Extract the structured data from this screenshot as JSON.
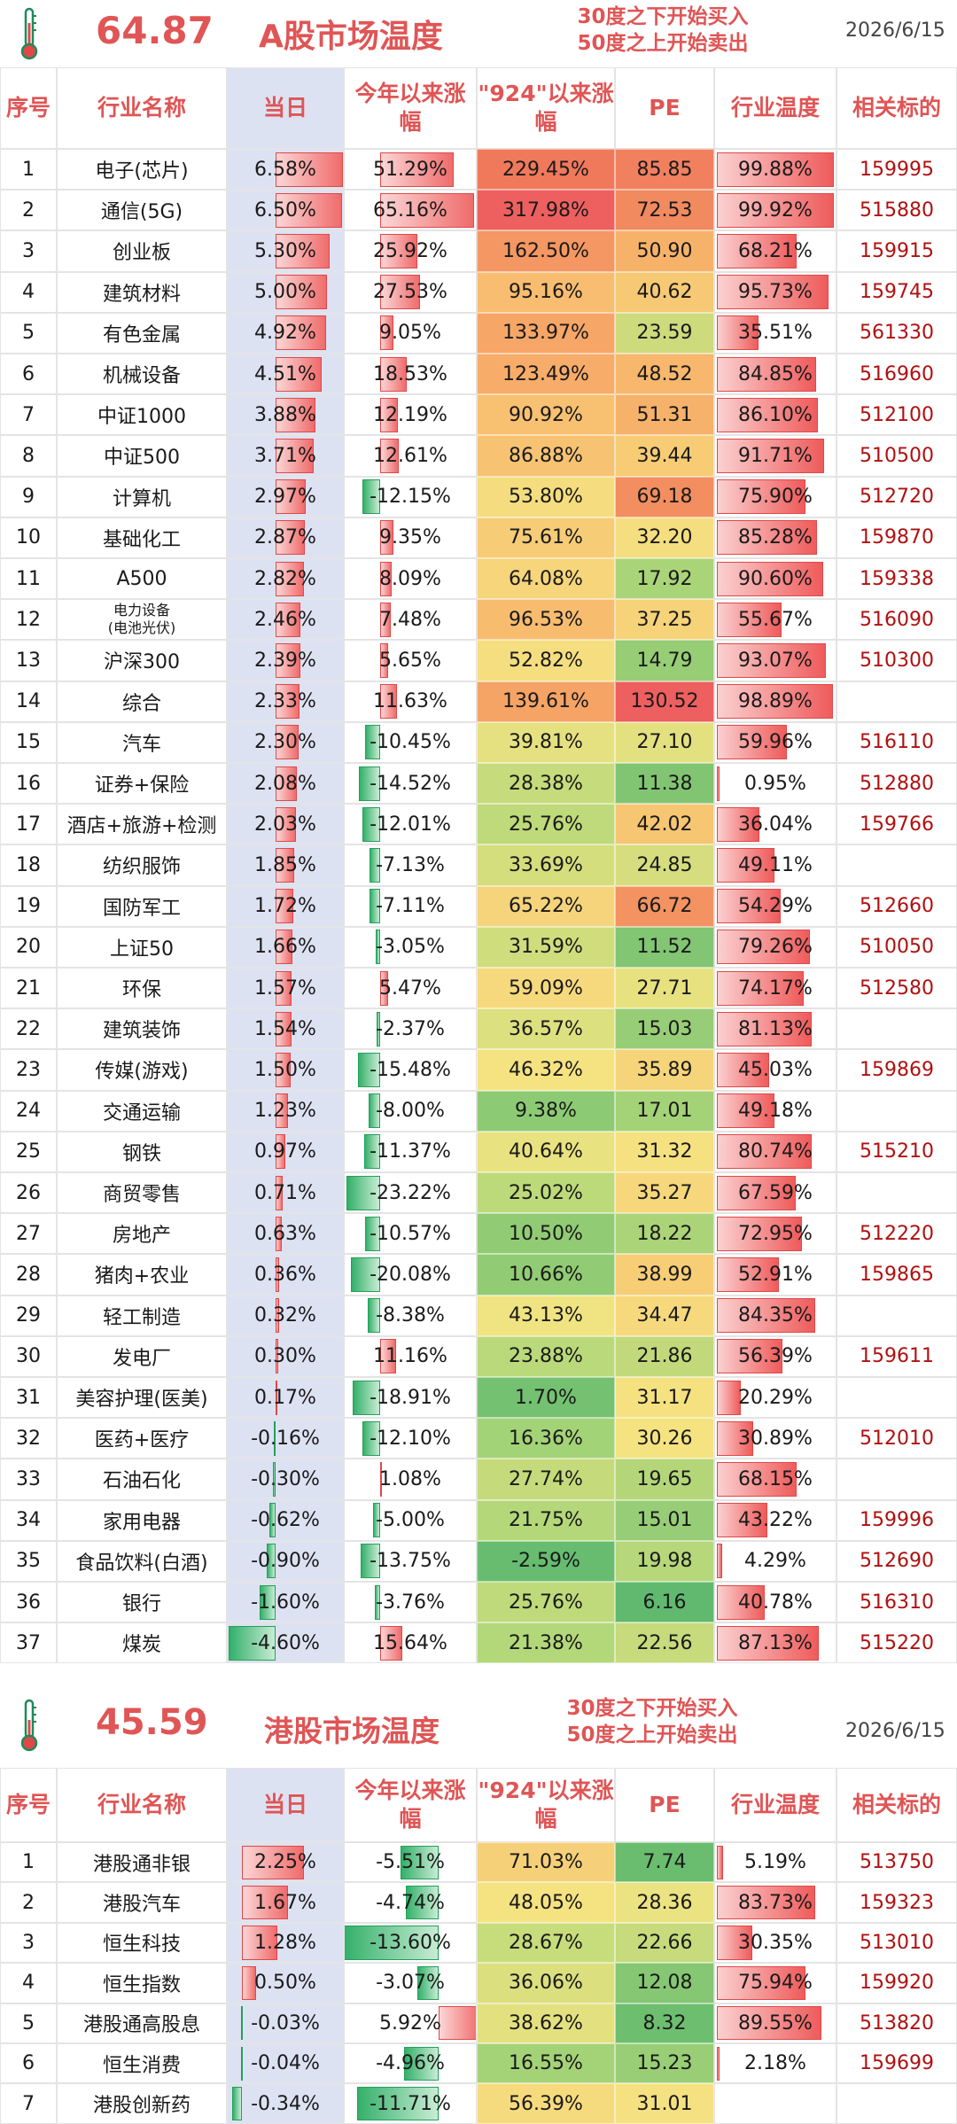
{
  "a_share": {
    "temperature": "64.87",
    "title": "A股市场温度",
    "note_line1": "30度之下开始买入",
    "note_line2": "50度之上开始卖出",
    "date": "2026/6/15",
    "headers": {
      "index": "序号",
      "name": "行业名称",
      "today": "当日",
      "ytd": "今年以来涨幅",
      "since924": "\"924\"以来涨幅",
      "pe": "PE",
      "temp": "行业温度",
      "code": "相关标的"
    },
    "rows": [
      {
        "no": "1",
        "name": "电子(芯片)",
        "today": "6.58%",
        "ytd": "51.29%",
        "since924": "229.45%",
        "pe": "85.85",
        "temp": "99.88%",
        "code": "159995"
      },
      {
        "no": "2",
        "name": "通信(5G)",
        "today": "6.50%",
        "ytd": "65.16%",
        "since924": "317.98%",
        "pe": "72.53",
        "temp": "99.92%",
        "code": "515880"
      },
      {
        "no": "3",
        "name": "创业板",
        "today": "5.30%",
        "ytd": "25.92%",
        "since924": "162.50%",
        "pe": "50.90",
        "temp": "68.21%",
        "code": "159915"
      },
      {
        "no": "4",
        "name": "建筑材料",
        "today": "5.00%",
        "ytd": "27.53%",
        "since924": "95.16%",
        "pe": "40.62",
        "temp": "95.73%",
        "code": "159745"
      },
      {
        "no": "5",
        "name": "有色金属",
        "today": "4.92%",
        "ytd": "9.05%",
        "since924": "133.97%",
        "pe": "23.59",
        "temp": "35.51%",
        "code": "561330"
      },
      {
        "no": "6",
        "name": "机械设备",
        "today": "4.51%",
        "ytd": "18.53%",
        "since924": "123.49%",
        "pe": "48.52",
        "temp": "84.85%",
        "code": "516960"
      },
      {
        "no": "7",
        "name": "中证1000",
        "today": "3.88%",
        "ytd": "12.19%",
        "since924": "90.92%",
        "pe": "51.31",
        "temp": "86.10%",
        "code": "512100"
      },
      {
        "no": "8",
        "name": "中证500",
        "today": "3.71%",
        "ytd": "12.61%",
        "since924": "86.88%",
        "pe": "39.44",
        "temp": "91.71%",
        "code": "510500"
      },
      {
        "no": "9",
        "name": "计算机",
        "today": "2.97%",
        "ytd": "-12.15%",
        "since924": "53.80%",
        "pe": "69.18",
        "temp": "75.90%",
        "code": "512720"
      },
      {
        "no": "10",
        "name": "基础化工",
        "today": "2.87%",
        "ytd": "9.35%",
        "since924": "75.61%",
        "pe": "32.20",
        "temp": "85.28%",
        "code": "159870"
      },
      {
        "no": "11",
        "name": "A500",
        "today": "2.82%",
        "ytd": "8.09%",
        "since924": "64.08%",
        "pe": "17.92",
        "temp": "90.60%",
        "code": "159338"
      },
      {
        "no": "12",
        "name": "电力设备",
        "name2": "(电池光伏)",
        "today": "2.46%",
        "ytd": "7.48%",
        "since924": "96.53%",
        "pe": "37.25",
        "temp": "55.67%",
        "code": "516090"
      },
      {
        "no": "13",
        "name": "沪深300",
        "today": "2.39%",
        "ytd": "5.65%",
        "since924": "52.82%",
        "pe": "14.79",
        "temp": "93.07%",
        "code": "510300"
      },
      {
        "no": "14",
        "name": "综合",
        "today": "2.33%",
        "ytd": "11.63%",
        "since924": "139.61%",
        "pe": "130.52",
        "temp": "98.89%",
        "code": ""
      },
      {
        "no": "15",
        "name": "汽车",
        "today": "2.30%",
        "ytd": "-10.45%",
        "since924": "39.81%",
        "pe": "27.10",
        "temp": "59.96%",
        "code": "516110"
      },
      {
        "no": "16",
        "name": "证券+保险",
        "today": "2.08%",
        "ytd": "-14.52%",
        "since924": "28.38%",
        "pe": "11.38",
        "temp": "0.95%",
        "code": "512880"
      },
      {
        "no": "17",
        "name": "酒店+旅游+检测",
        "today": "2.03%",
        "ytd": "-12.01%",
        "since924": "25.76%",
        "pe": "42.02",
        "temp": "36.04%",
        "code": "159766"
      },
      {
        "no": "18",
        "name": "纺织服饰",
        "today": "1.85%",
        "ytd": "-7.13%",
        "since924": "33.69%",
        "pe": "24.85",
        "temp": "49.11%",
        "code": ""
      },
      {
        "no": "19",
        "name": "国防军工",
        "today": "1.72%",
        "ytd": "-7.11%",
        "since924": "65.22%",
        "pe": "66.72",
        "temp": "54.29%",
        "code": "512660"
      },
      {
        "no": "20",
        "name": "上证50",
        "today": "1.66%",
        "ytd": "-3.05%",
        "since924": "31.59%",
        "pe": "11.52",
        "temp": "79.26%",
        "code": "510050"
      },
      {
        "no": "21",
        "name": "环保",
        "today": "1.57%",
        "ytd": "5.47%",
        "since924": "59.09%",
        "pe": "27.71",
        "temp": "74.17%",
        "code": "512580"
      },
      {
        "no": "22",
        "name": "建筑装饰",
        "today": "1.54%",
        "ytd": "-2.37%",
        "since924": "36.57%",
        "pe": "15.03",
        "temp": "81.13%",
        "code": ""
      },
      {
        "no": "23",
        "name": "传媒(游戏)",
        "today": "1.50%",
        "ytd": "-15.48%",
        "since924": "46.32%",
        "pe": "35.89",
        "temp": "45.03%",
        "code": "159869"
      },
      {
        "no": "24",
        "name": "交通运输",
        "today": "1.23%",
        "ytd": "-8.00%",
        "since924": "9.38%",
        "pe": "17.01",
        "temp": "49.18%",
        "code": ""
      },
      {
        "no": "25",
        "name": "钢铁",
        "today": "0.97%",
        "ytd": "-11.37%",
        "since924": "40.64%",
        "pe": "31.32",
        "temp": "80.74%",
        "code": "515210"
      },
      {
        "no": "26",
        "name": "商贸零售",
        "today": "0.71%",
        "ytd": "-23.22%",
        "since924": "25.02%",
        "pe": "35.27",
        "temp": "67.59%",
        "code": ""
      },
      {
        "no": "27",
        "name": "房地产",
        "today": "0.63%",
        "ytd": "-10.57%",
        "since924": "10.50%",
        "pe": "18.22",
        "temp": "72.95%",
        "code": "512220"
      },
      {
        "no": "28",
        "name": "猪肉+农业",
        "today": "0.36%",
        "ytd": "-20.08%",
        "since924": "10.66%",
        "pe": "38.99",
        "temp": "52.91%",
        "code": "159865"
      },
      {
        "no": "29",
        "name": "轻工制造",
        "today": "0.32%",
        "ytd": "-8.38%",
        "since924": "43.13%",
        "pe": "34.47",
        "temp": "84.35%",
        "code": ""
      },
      {
        "no": "30",
        "name": "发电厂",
        "today": "0.30%",
        "ytd": "11.16%",
        "since924": "23.88%",
        "pe": "21.86",
        "temp": "56.39%",
        "code": "159611"
      },
      {
        "no": "31",
        "name": "美容护理(医美)",
        "today": "0.17%",
        "ytd": "-18.91%",
        "since924": "1.70%",
        "pe": "31.17",
        "temp": "20.29%",
        "code": ""
      },
      {
        "no": "32",
        "name": "医药+医疗",
        "today": "-0.16%",
        "ytd": "-12.10%",
        "since924": "16.36%",
        "pe": "30.26",
        "temp": "30.89%",
        "code": "512010"
      },
      {
        "no": "33",
        "name": "石油石化",
        "today": "-0.30%",
        "ytd": "1.08%",
        "since924": "27.74%",
        "pe": "19.65",
        "temp": "68.15%",
        "code": ""
      },
      {
        "no": "34",
        "name": "家用电器",
        "today": "-0.62%",
        "ytd": "-5.00%",
        "since924": "21.75%",
        "pe": "15.01",
        "temp": "43.22%",
        "code": "159996"
      },
      {
        "no": "35",
        "name": "食品饮料(白酒)",
        "today": "-0.90%",
        "ytd": "-13.75%",
        "since924": "-2.59%",
        "pe": "19.98",
        "temp": "4.29%",
        "code": "512690"
      },
      {
        "no": "36",
        "name": "银行",
        "today": "-1.60%",
        "ytd": "-3.76%",
        "since924": "25.76%",
        "pe": "6.16",
        "temp": "40.78%",
        "code": "516310"
      },
      {
        "no": "37",
        "name": "煤炭",
        "today": "-4.60%",
        "ytd": "15.64%",
        "since924": "21.38%",
        "pe": "22.56",
        "temp": "87.13%",
        "code": "515220"
      }
    ]
  },
  "hk_share": {
    "temperature": "45.59",
    "title": "港股市场温度",
    "note_line1": "30度之下开始买入",
    "note_line2": "50度之上开始卖出",
    "date": "2026/6/15",
    "headers": {
      "index": "序号",
      "name": "行业名称",
      "today": "当日",
      "ytd": "今年以来涨幅",
      "since924": "\"924\"以来涨幅",
      "pe": "PE",
      "temp": "行业温度",
      "code": "相关标的"
    },
    "rows": [
      {
        "no": "1",
        "name": "港股通非银",
        "today": "2.25%",
        "ytd": "-5.51%",
        "since924": "71.03%",
        "pe": "7.74",
        "temp": "5.19%",
        "code": "513750"
      },
      {
        "no": "2",
        "name": "港股汽车",
        "today": "1.67%",
        "ytd": "-4.74%",
        "since924": "48.05%",
        "pe": "28.36",
        "temp": "83.73%",
        "code": "159323"
      },
      {
        "no": "3",
        "name": "恒生科技",
        "today": "1.28%",
        "ytd": "-13.60%",
        "since924": "28.67%",
        "pe": "22.66",
        "temp": "30.35%",
        "code": "513010"
      },
      {
        "no": "4",
        "name": "恒生指数",
        "today": "0.50%",
        "ytd": "-3.07%",
        "since924": "36.06%",
        "pe": "12.08",
        "temp": "75.94%",
        "code": "159920"
      },
      {
        "no": "5",
        "name": "港股通高股息",
        "today": "-0.03%",
        "ytd": "5.92%",
        "since924": "38.62%",
        "pe": "8.32",
        "temp": "89.55%",
        "code": "513820"
      },
      {
        "no": "6",
        "name": "恒生消费",
        "today": "-0.04%",
        "ytd": "-4.96%",
        "since924": "16.55%",
        "pe": "15.23",
        "temp": "2.18%",
        "code": "159699"
      },
      {
        "no": "7",
        "name": "港股创新药",
        "today": "-0.34%",
        "ytd": "-11.71%",
        "since924": "56.39%",
        "pe": "31.01",
        "temp": "",
        "code": ""
      }
    ]
  },
  "colors": {
    "accent": "#e05555",
    "code_text": "#b01010",
    "day_column_bg": "#dde2f3",
    "positive_bar": "#f06b6b",
    "negative_bar": "#34b06a"
  },
  "icons": {
    "thermometer": "thermometer-icon"
  }
}
